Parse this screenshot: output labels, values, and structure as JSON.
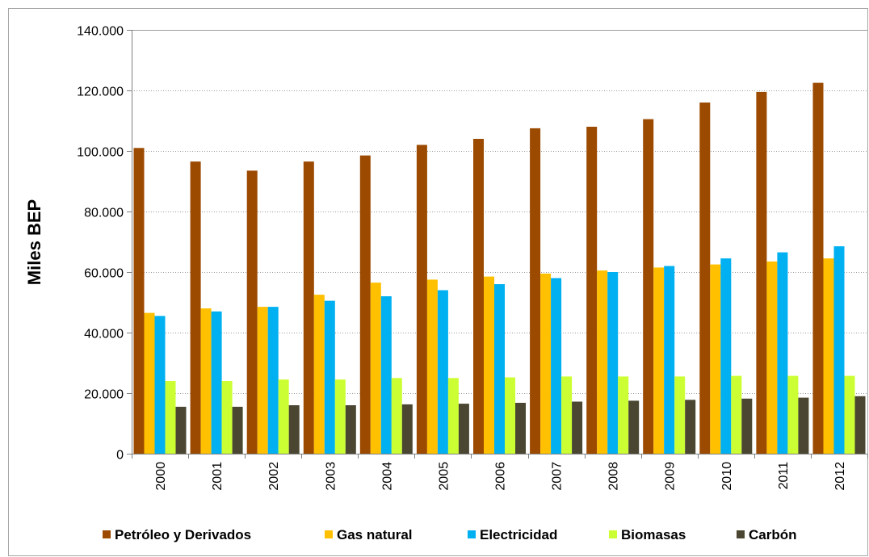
{
  "chart_data": {
    "type": "bar",
    "title": "",
    "xlabel": "",
    "ylabel": "Miles BEP",
    "ylim": [
      0,
      140000
    ],
    "yticks": [
      0,
      20000,
      40000,
      60000,
      80000,
      100000,
      120000,
      140000
    ],
    "ytick_labels": [
      "0",
      "20.000",
      "40.000",
      "60.000",
      "80.000",
      "100.000",
      "120.000",
      "140.000"
    ],
    "grid": true,
    "legend_position": "bottom",
    "categories": [
      "2000",
      "2001",
      "2002",
      "2003",
      "2004",
      "2005",
      "2006",
      "2007",
      "2008",
      "2009",
      "2010",
      "2011",
      "2012"
    ],
    "series": [
      {
        "name": "Petróleo y Derivados",
        "color": "#9C4A00",
        "values": [
          101000,
          96500,
          93500,
          96500,
          98500,
          102000,
          104000,
          107500,
          108000,
          110500,
          116000,
          119500,
          122500
        ]
      },
      {
        "name": "Gas natural",
        "color": "#FFC000",
        "values": [
          46500,
          48000,
          48500,
          52500,
          56500,
          57500,
          58500,
          59500,
          60500,
          61500,
          62500,
          63500,
          64500
        ]
      },
      {
        "name": "Electricidad",
        "color": "#00B0F0",
        "values": [
          45500,
          47000,
          48500,
          50500,
          52000,
          54000,
          56000,
          58000,
          60000,
          62000,
          64500,
          66500,
          68500
        ]
      },
      {
        "name": "Biomasas",
        "color": "#CCFF33",
        "values": [
          24000,
          24000,
          24500,
          24500,
          25000,
          25000,
          25200,
          25500,
          25500,
          25500,
          25700,
          25700,
          25700
        ]
      },
      {
        "name": "Carbón",
        "color": "#4A4631",
        "values": [
          15500,
          15500,
          16000,
          16000,
          16300,
          16500,
          16800,
          17200,
          17500,
          17800,
          18200,
          18500,
          19000
        ]
      }
    ]
  }
}
